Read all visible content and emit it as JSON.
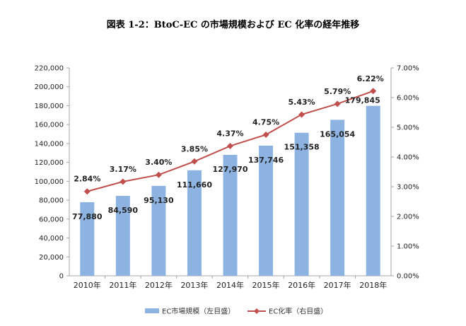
{
  "title": "図表 1-2：BtoC-EC の市場規模および EC 化率の経年推移",
  "colors": {
    "bar": "#8DB3E2",
    "line": "#C0504D",
    "highlight_bar_label": "#1F3864",
    "highlight_line_label": "#C00000",
    "axis": "#A6A6A6"
  },
  "chart_data": {
    "type": "bar+line",
    "categories": [
      "2010年",
      "2011年",
      "2012年",
      "2013年",
      "2014年",
      "2015年",
      "2016年",
      "2017年",
      "2018年"
    ],
    "series": [
      {
        "name": "EC市場規模（左目盛）",
        "type": "bar",
        "axis": "left",
        "values": [
          77880,
          84590,
          95130,
          111660,
          127970,
          137746,
          151358,
          165054,
          179845
        ],
        "labels": [
          "77,880",
          "84,590",
          "95,130",
          "111,660",
          "127,970",
          "137,746",
          "151,358",
          "165,054",
          "179,845"
        ]
      },
      {
        "name": "EC化率（右目盛）",
        "type": "line",
        "axis": "right",
        "values": [
          2.84,
          3.17,
          3.4,
          3.85,
          4.37,
          4.75,
          5.43,
          5.79,
          6.22
        ],
        "labels": [
          "2.84%",
          "3.17%",
          "3.40%",
          "3.85%",
          "4.37%",
          "4.75%",
          "5.43%",
          "5.79%",
          "6.22%"
        ]
      }
    ],
    "y_left": {
      "lim": [
        0,
        220000
      ],
      "ticks": [
        "0",
        "20,000",
        "40,000",
        "60,000",
        "80,000",
        "100,000",
        "120,000",
        "140,000",
        "160,000",
        "180,000",
        "200,000",
        "220,000"
      ]
    },
    "y_right": {
      "lim": [
        0,
        7
      ],
      "ticks": [
        "0.00%",
        "1.00%",
        "2.00%",
        "3.00%",
        "4.00%",
        "5.00%",
        "6.00%",
        "7.00%"
      ]
    },
    "grid": false,
    "legend_position": "bottom"
  }
}
